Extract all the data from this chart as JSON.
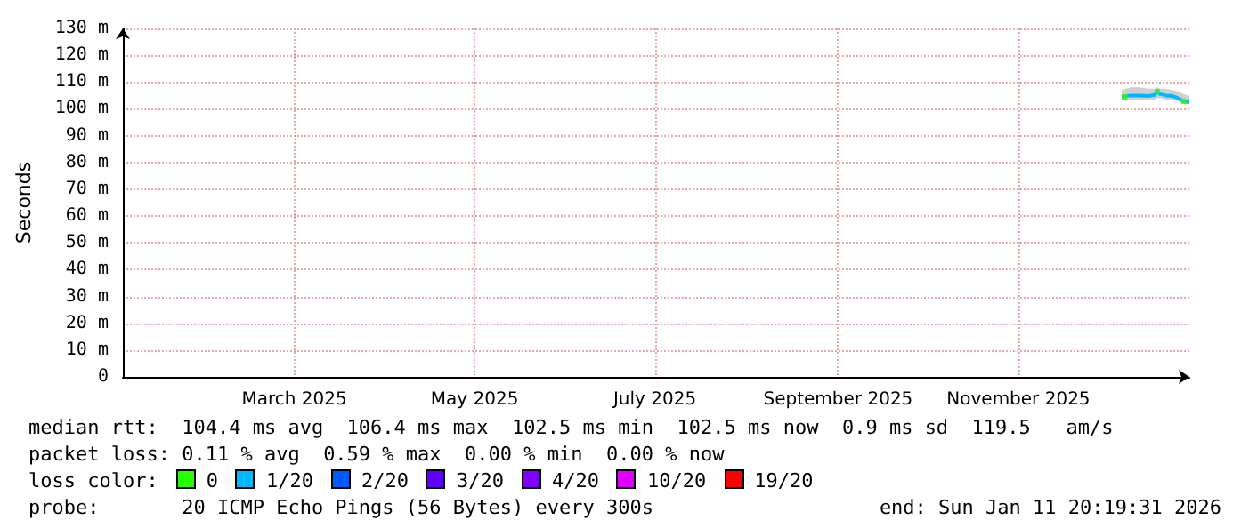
{
  "chart_data": {
    "type": "line",
    "ylabel": "Seconds",
    "xlim": [
      "2025-01-16",
      "2026-01-11T20:19"
    ],
    "xticks": [
      {
        "value": "2025-03-15",
        "label": "March 2025"
      },
      {
        "value": "2025-05-15",
        "label": "May 2025"
      },
      {
        "value": "2025-07-15",
        "label": "July 2025"
      },
      {
        "value": "2025-09-15",
        "label": "September 2025"
      },
      {
        "value": "2025-11-15",
        "label": "November 2025"
      }
    ],
    "ylim": [
      0,
      130
    ],
    "yticks": [
      0,
      {
        "value": 10,
        "label": "10 m"
      },
      {
        "value": 20,
        "label": "20 m"
      },
      {
        "value": 30,
        "label": "30 m"
      },
      {
        "value": 40,
        "label": "40 m"
      },
      {
        "value": 50,
        "label": "50 m"
      },
      {
        "value": 60,
        "label": "60 m"
      },
      {
        "value": 70,
        "label": "70 m"
      },
      {
        "value": 80,
        "label": "80 m"
      },
      {
        "value": 90,
        "label": "90 m"
      },
      {
        "value": 100,
        "label": "100 m"
      },
      {
        "value": 110,
        "label": "110 m"
      },
      {
        "value": 120,
        "label": "120 m"
      },
      {
        "value": 130,
        "label": "130 m"
      }
    ],
    "grid": true,
    "legend": "bottom",
    "series": [
      {
        "name": "0",
        "type": "scatter",
        "color": "#26ff00",
        "x": [
          "2025-12-21",
          "2026-01-01",
          "2026-01-10"
        ],
        "values": [
          104.5,
          106.4,
          102.8
        ]
      },
      {
        "name": "1/20",
        "color": "#00b8ff",
        "x": [
          "2025-12-20",
          "2025-12-23",
          "2025-12-26",
          "2025-12-29",
          "2025-12-31",
          "2026-01-01",
          "2026-01-02",
          "2026-01-04",
          "2026-01-06",
          "2026-01-08",
          "2026-01-10",
          "2026-01-11T20:00"
        ],
        "values": [
          104.5,
          105,
          105,
          104.8,
          105.2,
          106.4,
          105.5,
          105,
          104.8,
          104,
          102.8,
          102.5
        ],
        "lower": [
          103,
          103.5,
          103.5,
          103.5,
          103.5,
          104,
          104,
          103.5,
          103.5,
          103,
          102,
          102
        ],
        "upper": [
          107,
          108,
          108,
          107.5,
          107.5,
          108,
          107.5,
          107.5,
          107,
          106.5,
          105.5,
          105
        ]
      },
      {
        "name": "2/20",
        "color": "#0059ff"
      },
      {
        "name": "3/20",
        "color": "#5e00ff"
      },
      {
        "name": "4/20",
        "color": "#7e00ff"
      },
      {
        "name": "10/20",
        "color": "#dd00ff"
      },
      {
        "name": "19/20",
        "color": "#ff0000"
      }
    ],
    "annotations": [
      "median rtt:  104.4 ms avg  106.4 ms max  102.5 ms min  102.5 ms now  0.9 ms sd  119.5   am/s",
      "packet loss: 0.11 % avg  0.59 % max  0.00 % min  0.00 % now",
      "loss color:",
      "probe:       20 ICMP Echo Pings (56 Bytes) every 300s",
      "end: Sun Jan 11 20:19:31 2026"
    ]
  }
}
